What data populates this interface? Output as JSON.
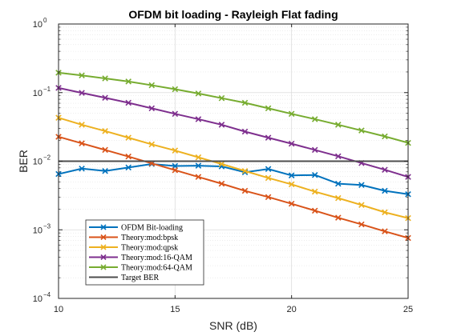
{
  "chart_data": {
    "type": "line",
    "title": "OFDM bit loading -  Rayleigh Flat fading",
    "xlabel": "SNR (dB)",
    "ylabel": "BER",
    "xlim": [
      10,
      25
    ],
    "ylim": [
      0.0001,
      1
    ],
    "yscale": "log",
    "grid": true,
    "x_ticks": [
      10,
      15,
      20,
      25
    ],
    "y_ticks": [
      {
        "value": 0.0001,
        "base": "10",
        "exp": "−4"
      },
      {
        "value": 0.001,
        "base": "10",
        "exp": "−3"
      },
      {
        "value": 0.01,
        "base": "10",
        "exp": "−2"
      },
      {
        "value": 0.1,
        "base": "10",
        "exp": "−1"
      },
      {
        "value": 1,
        "base": "10",
        "exp": "0"
      }
    ],
    "legend_position": "bottom-left",
    "x": [
      10,
      11,
      12,
      13,
      14,
      15,
      16,
      17,
      18,
      19,
      20,
      21,
      22,
      23,
      24,
      25
    ],
    "series": [
      {
        "name": "OFDM Bit-loading",
        "color": "#0072BD",
        "marker": "x",
        "values": [
          0.0065,
          0.0078,
          0.0072,
          0.0081,
          0.0091,
          0.0085,
          0.0086,
          0.0084,
          0.0069,
          0.0077,
          0.0062,
          0.0063,
          0.0047,
          0.0045,
          0.0037,
          0.0033
        ]
      },
      {
        "name": "Theory:mod:bpsk",
        "color": "#D95319",
        "marker": "x",
        "values": [
          0.0227,
          0.0182,
          0.0146,
          0.0117,
          0.0093,
          0.0074,
          0.0059,
          0.0047,
          0.0037,
          0.003,
          0.0024,
          0.0019,
          0.0015,
          0.0012,
          0.00095,
          0.00076
        ]
      },
      {
        "name": "Theory:mod:qpsk",
        "color": "#EDB120",
        "marker": "x",
        "values": [
          0.043,
          0.034,
          0.0275,
          0.022,
          0.0176,
          0.0143,
          0.0114,
          0.0091,
          0.0072,
          0.0057,
          0.0046,
          0.0036,
          0.0029,
          0.0023,
          0.0018,
          0.00148
        ]
      },
      {
        "name": "Theory:mod:16-QAM",
        "color": "#7E2F8E",
        "marker": "x",
        "values": [
          0.117,
          0.099,
          0.084,
          0.071,
          0.059,
          0.049,
          0.041,
          0.034,
          0.027,
          0.022,
          0.018,
          0.0146,
          0.0118,
          0.0094,
          0.0075,
          0.0059
        ]
      },
      {
        "name": "Theory:mod:64-QAM",
        "color": "#77AC30",
        "marker": "x",
        "values": [
          0.195,
          0.178,
          0.161,
          0.145,
          0.128,
          0.112,
          0.097,
          0.083,
          0.071,
          0.059,
          0.049,
          0.041,
          0.034,
          0.028,
          0.023,
          0.0185
        ]
      },
      {
        "name": "Target BER",
        "color": "#4D4D4D",
        "marker": "none",
        "values": [
          0.01,
          0.01,
          0.01,
          0.01,
          0.01,
          0.01,
          0.01,
          0.01,
          0.01,
          0.01,
          0.01,
          0.01,
          0.01,
          0.01,
          0.01,
          0.01
        ]
      }
    ]
  }
}
